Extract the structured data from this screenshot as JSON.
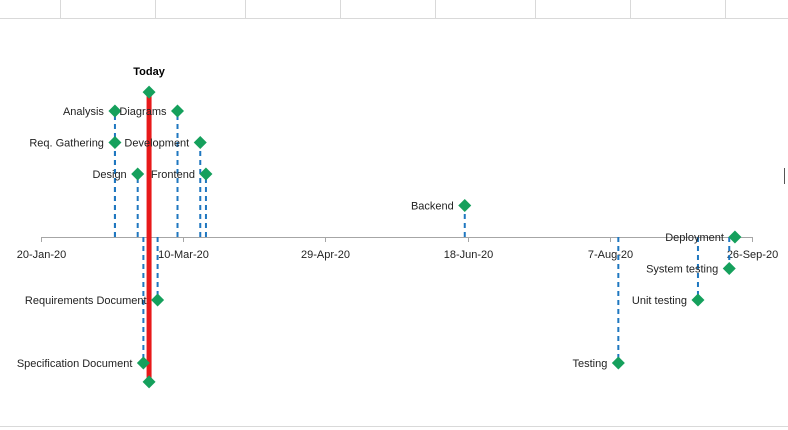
{
  "chart_data": {
    "type": "scatter",
    "title": "",
    "xlabel": "",
    "ylabel": "",
    "x_axis_type": "date",
    "xlim": [
      "2020-01-20",
      "2020-09-26"
    ],
    "ylim": [
      -5,
      5
    ],
    "tick_labels": [
      "20-Jan-20",
      "10-Mar-20",
      "29-Apr-20",
      "18-Jun-20",
      "7-Aug-20",
      "26-Sep-20"
    ],
    "tick_dates": [
      "2020-01-20",
      "2020-03-10",
      "2020-04-29",
      "2020-06-18",
      "2020-08-07",
      "2020-09-26"
    ],
    "today": {
      "label": "Today",
      "date": "2020-02-27"
    },
    "tasks": [
      {
        "label": "Analysis",
        "date": "2020-02-15",
        "y": 4,
        "label_side": "left"
      },
      {
        "label": "Req. Gathering",
        "date": "2020-02-15",
        "y": 3,
        "label_side": "left"
      },
      {
        "label": "Design",
        "date": "2020-02-23",
        "y": 2,
        "label_side": "left"
      },
      {
        "label": "Diagrams",
        "date": "2020-03-08",
        "y": 4,
        "label_side": "left"
      },
      {
        "label": "Development",
        "date": "2020-03-16",
        "y": 3,
        "label_side": "left"
      },
      {
        "label": "Frontend",
        "date": "2020-03-18",
        "y": 2,
        "label_side": "left"
      },
      {
        "label": "Backend",
        "date": "2020-06-17",
        "y": 1,
        "label_side": "left"
      },
      {
        "label": "Deployment",
        "date": "2020-09-20",
        "y": 0,
        "label_side": "left"
      },
      {
        "label": "System testing",
        "date": "2020-09-18",
        "y": -1,
        "label_side": "left"
      },
      {
        "label": "Unit testing",
        "date": "2020-09-07",
        "y": -2,
        "label_side": "left"
      },
      {
        "label": "Testing",
        "date": "2020-08-10",
        "y": -4,
        "label_side": "left"
      },
      {
        "label": "Requirements Document",
        "date": "2020-03-01",
        "y": -2,
        "label_side": "left"
      },
      {
        "label": "Specification Document",
        "date": "2020-02-25",
        "y": -4,
        "label_side": "left"
      }
    ],
    "colors": {
      "marker": "#15a05c",
      "connector": "#1f77c0",
      "today_line": "#e8191a",
      "axis": "#a6a6a6",
      "gridline": "#d9d9d9"
    }
  }
}
